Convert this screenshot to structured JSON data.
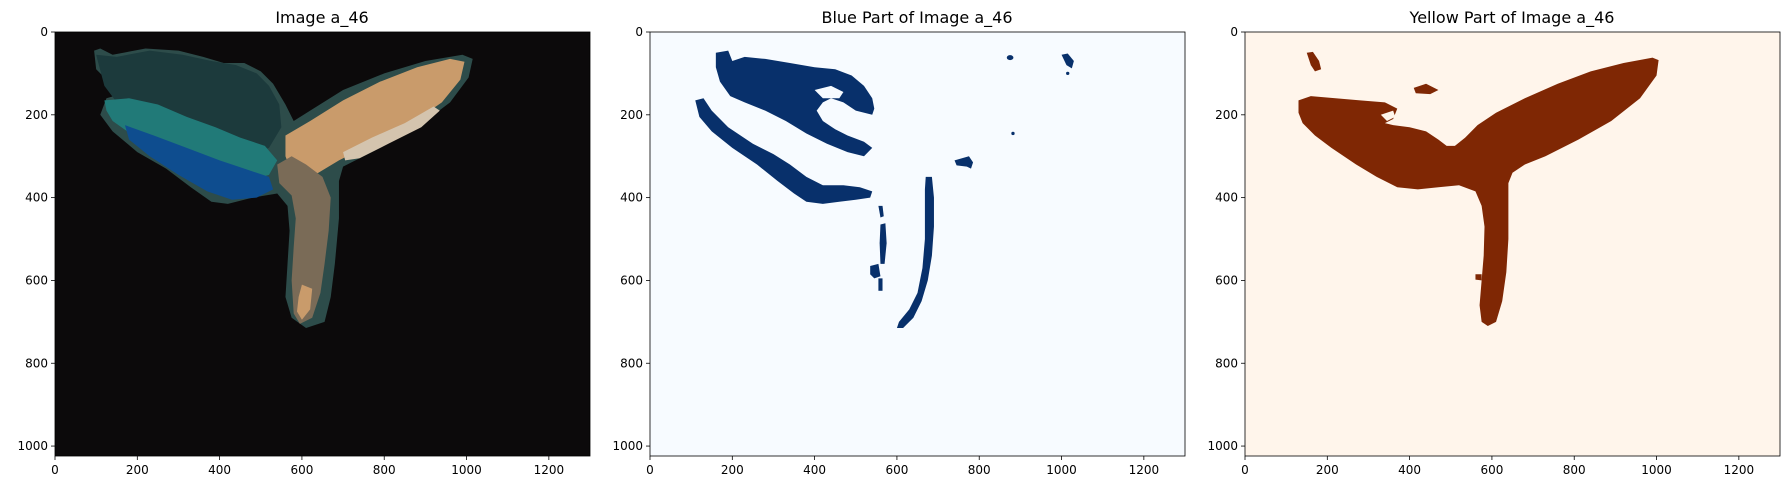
{
  "chart_data": [
    {
      "type": "heatmap",
      "title": "Image a_46",
      "image_extent": {
        "width": 1300,
        "height": 1024
      },
      "xlim": [
        0,
        1300
      ],
      "ylim": [
        1024,
        0
      ],
      "x_ticks": [
        0,
        200,
        400,
        600,
        800,
        1000,
        1200
      ],
      "y_ticks": [
        0,
        200,
        400,
        600,
        800,
        1000
      ],
      "colors": {
        "background": "#0c0a0b",
        "dark_teal": "#1c3a3c",
        "teal": "#217a78",
        "blue": "#0e4d8f",
        "tan": "#c99b6b",
        "light_tan": "#d4c4ae",
        "olive": "#7a6b57",
        "outline": "#3c5a56"
      }
    },
    {
      "type": "heatmap",
      "title": "Blue Part of Image a_46",
      "image_extent": {
        "width": 1300,
        "height": 1024
      },
      "xlim": [
        0,
        1300
      ],
      "ylim": [
        1024,
        0
      ],
      "x_ticks": [
        0,
        200,
        400,
        600,
        800,
        1000,
        1200
      ],
      "y_ticks": [
        0,
        200,
        400,
        600,
        800,
        1000
      ],
      "colors": {
        "background": "#f7fbff",
        "mask": "#08306b"
      }
    },
    {
      "type": "heatmap",
      "title": "Yellow Part of Image a_46",
      "image_extent": {
        "width": 1300,
        "height": 1024
      },
      "xlim": [
        0,
        1300
      ],
      "ylim": [
        1024,
        0
      ],
      "x_ticks": [
        0,
        200,
        400,
        600,
        800,
        1000,
        1200
      ],
      "y_ticks": [
        0,
        200,
        400,
        600,
        800,
        1000
      ],
      "colors": {
        "background": "#fff5eb",
        "mask": "#7f2704"
      }
    }
  ]
}
